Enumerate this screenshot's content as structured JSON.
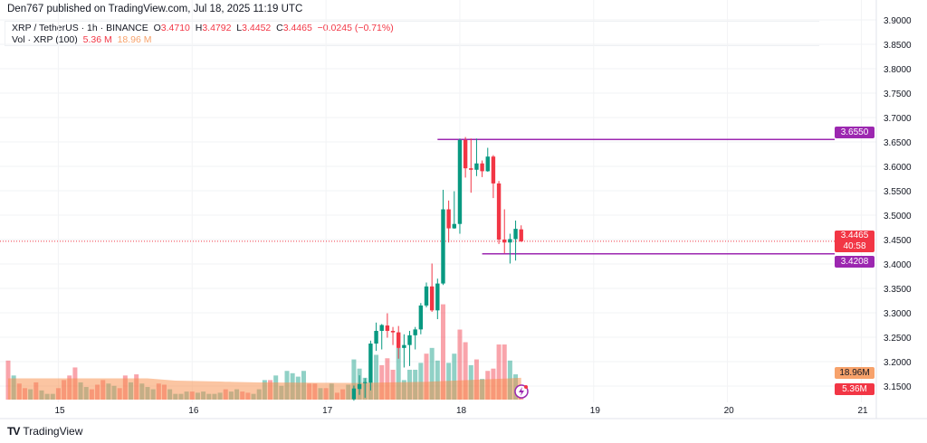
{
  "header": {
    "published": "Den767 published on TradingView.com, Jul 18, 2025 11:19 UTC"
  },
  "legend": {
    "symbol": "XRP / TetherUS · 1h · BINANCE",
    "o_label": "O",
    "o": "3.4710",
    "h_label": "H",
    "h": "3.4792",
    "l_label": "L",
    "l": "3.4452",
    "c_label": "C",
    "c": "3.4465",
    "change": "−0.0245 (−0.71%)",
    "vol_label": "Vol · XRP (100)",
    "vol": "5.36 M",
    "vol_ma": "18.96 M"
  },
  "colors": {
    "up": "#089981",
    "down": "#f23645",
    "line": "#9c27b0",
    "ma": "#f7a26b"
  },
  "chart_data": {
    "type": "candlestick",
    "price_axis": {
      "ticks": [
        "3.9000",
        "3.8500",
        "3.8000",
        "3.7500",
        "3.7000",
        "3.6500",
        "3.6000",
        "3.5500",
        "3.5000",
        "3.4500",
        "3.4000",
        "3.3500",
        "3.3000",
        "3.2500",
        "3.2000",
        "3.1500"
      ],
      "ylim": [
        3.15,
        3.9
      ]
    },
    "time_axis": {
      "ticks": [
        "15",
        "16",
        "17",
        "18",
        "19",
        "20",
        "21"
      ],
      "first_bar": "Jul 14 15:00",
      "interval": "1h"
    },
    "candles_start_index": 62,
    "candles": [
      [
        3.123,
        3.151,
        3.12,
        3.145
      ],
      [
        3.144,
        3.172,
        3.132,
        3.154
      ],
      [
        3.156,
        3.166,
        3.126,
        3.158
      ],
      [
        3.157,
        3.243,
        3.141,
        3.237
      ],
      [
        3.237,
        3.28,
        3.222,
        3.263
      ],
      [
        3.263,
        3.277,
        3.225,
        3.275
      ],
      [
        3.274,
        3.299,
        3.249,
        3.263
      ],
      [
        3.263,
        3.271,
        3.234,
        3.26
      ],
      [
        3.26,
        3.273,
        3.206,
        3.228
      ],
      [
        3.228,
        3.256,
        3.188,
        3.234
      ],
      [
        3.234,
        3.263,
        3.191,
        3.254
      ],
      [
        3.254,
        3.271,
        3.225,
        3.266
      ],
      [
        3.266,
        3.32,
        3.256,
        3.315
      ],
      [
        3.315,
        3.362,
        3.311,
        3.354
      ],
      [
        3.354,
        3.401,
        3.302,
        3.305
      ],
      [
        3.305,
        3.37,
        3.287,
        3.36
      ],
      [
        3.36,
        3.552,
        3.357,
        3.512
      ],
      [
        3.512,
        3.53,
        3.444,
        3.473
      ],
      [
        3.473,
        3.549,
        3.472,
        3.482
      ],
      [
        3.482,
        3.657,
        3.462,
        3.654
      ],
      [
        3.654,
        3.66,
        3.577,
        3.596
      ],
      [
        3.596,
        3.657,
        3.546,
        3.593
      ],
      [
        3.593,
        3.657,
        3.58,
        3.606
      ],
      [
        3.606,
        3.612,
        3.578,
        3.59
      ],
      [
        3.59,
        3.638,
        3.589,
        3.62
      ],
      [
        3.62,
        3.623,
        3.535,
        3.565
      ],
      [
        3.565,
        3.57,
        3.441,
        3.45
      ],
      [
        3.45,
        3.512,
        3.422,
        3.444
      ],
      [
        3.444,
        3.462,
        3.401,
        3.451
      ],
      [
        3.451,
        3.489,
        3.407,
        3.472
      ],
      [
        3.471,
        3.4792,
        3.4452,
        3.4465
      ]
    ],
    "volume_m": [
      34,
      21,
      14,
      10,
      9,
      15,
      8,
      5,
      5,
      10,
      17,
      21,
      28,
      15,
      11,
      9,
      13,
      17,
      14,
      12,
      10,
      21,
      15,
      22,
      14,
      11,
      9,
      14,
      13,
      9,
      5,
      5,
      7,
      7,
      6,
      7,
      5,
      5,
      6,
      9,
      7,
      9,
      7,
      6,
      5,
      9,
      17,
      17,
      21,
      12,
      25,
      23,
      20,
      25,
      14,
      14,
      10,
      10,
      14,
      6,
      9,
      13,
      35,
      27,
      19,
      15,
      39,
      30,
      36,
      26,
      45,
      17,
      26,
      26,
      32,
      40,
      45,
      34,
      83,
      32,
      40,
      61,
      50,
      30,
      35,
      18,
      25,
      27,
      48,
      48,
      34,
      22,
      5.36
    ],
    "volume_dir": "dgddgdgggddddggdddggddgdgggddggggdgggggdggddgggdggggggddgdgddggggggdddgggggdggdggddgdgddddggd",
    "volume_ma_points": [
      [
        0,
        18.5
      ],
      [
        25,
        18.5
      ],
      [
        30,
        16.5
      ],
      [
        45,
        15
      ],
      [
        62,
        14.5
      ],
      [
        75,
        15.5
      ],
      [
        85,
        17.5
      ],
      [
        92,
        18.96
      ]
    ],
    "levels": [
      {
        "value": "3.6550",
        "from_index": 77
      },
      {
        "value": "3.4208",
        "from_index": 85
      }
    ],
    "last_price": "3.4465",
    "countdown": "40:58",
    "vol_last": "5.36M",
    "vol_ma_last": "18.96M"
  },
  "footer": {
    "brand": "TradingView"
  }
}
